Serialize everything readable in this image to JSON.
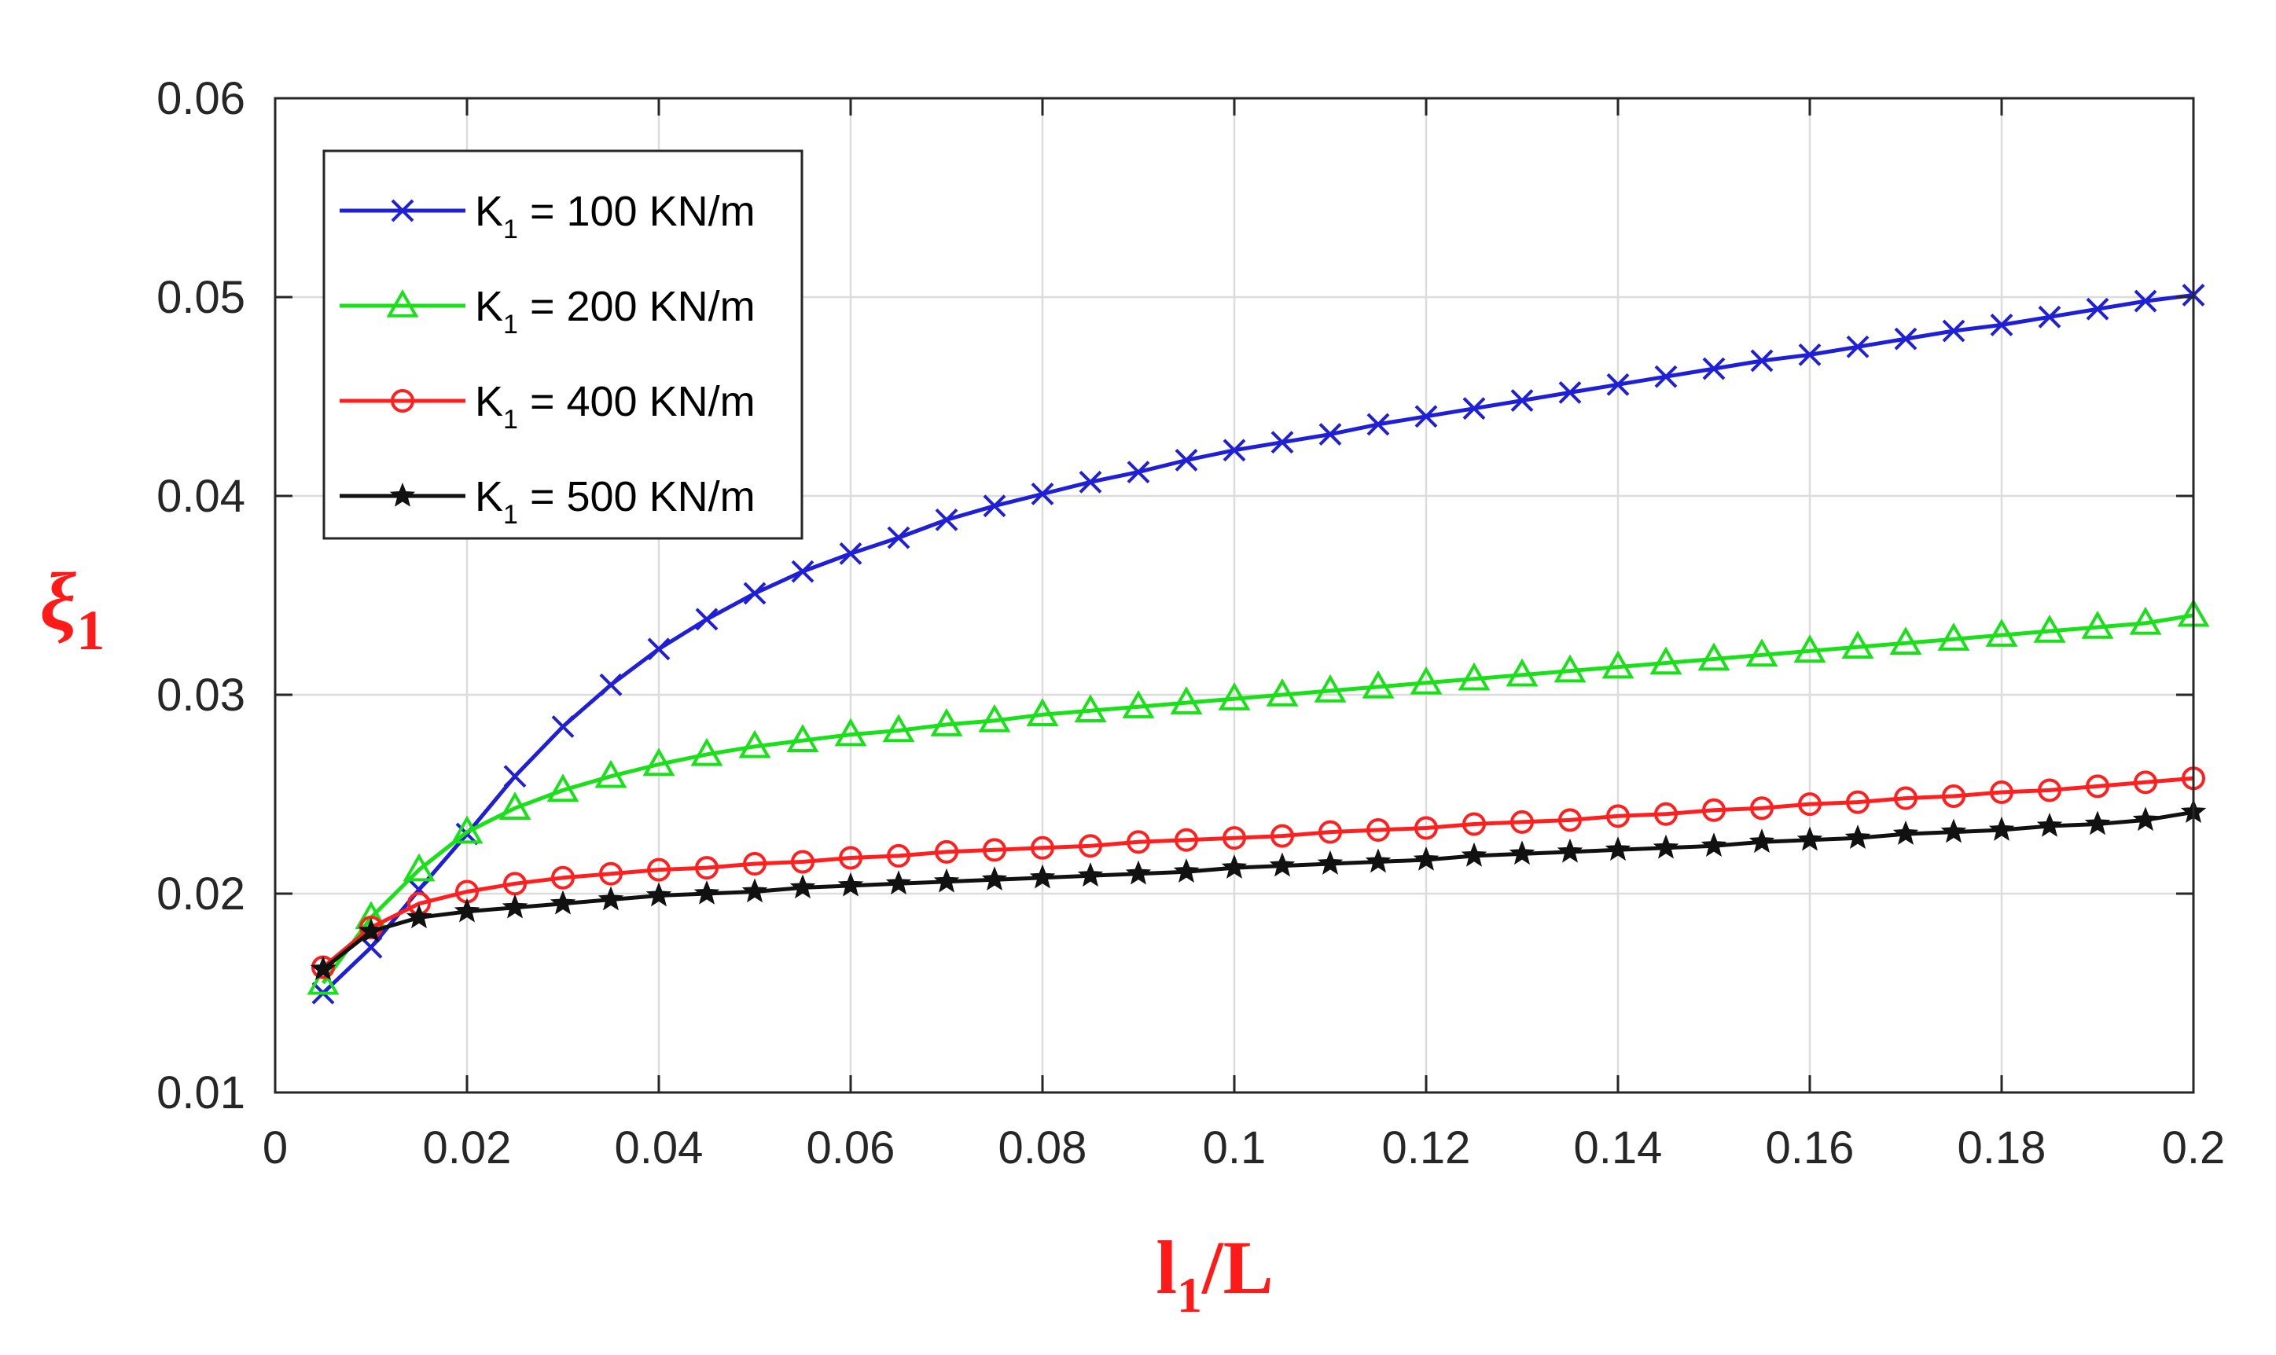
{
  "chart_data": {
    "type": "line",
    "title": "",
    "xlabel": {
      "main": "l",
      "sub": "1",
      "suffix": "/L"
    },
    "ylabel": {
      "main": "ξ",
      "sub": "1"
    },
    "xlim": [
      0,
      0.2
    ],
    "ylim": [
      0.01,
      0.06
    ],
    "grid": true,
    "legend_position": "top-left",
    "x_tick_labels": [
      "0",
      "0.02",
      "0.04",
      "0.06",
      "0.08",
      "0.1",
      "0.12",
      "0.14",
      "0.16",
      "0.18",
      "0.2"
    ],
    "y_tick_labels": [
      "0.01",
      "0.02",
      "0.03",
      "0.04",
      "0.05",
      "0.06"
    ],
    "x": [
      0.005,
      0.01,
      0.015,
      0.02,
      0.025,
      0.03,
      0.035,
      0.04,
      0.045,
      0.05,
      0.055,
      0.06,
      0.065,
      0.07,
      0.075,
      0.08,
      0.085,
      0.09,
      0.095,
      0.1,
      0.105,
      0.11,
      0.115,
      0.12,
      0.125,
      0.13,
      0.135,
      0.14,
      0.145,
      0.15,
      0.155,
      0.16,
      0.165,
      0.17,
      0.175,
      0.18,
      0.185,
      0.19,
      0.195,
      0.2
    ],
    "series": [
      {
        "name": "K1 = 100 KN/m",
        "legend_main": "K",
        "legend_sub": "1",
        "legend_rest": " = 100 KN/m",
        "color": "#1f1fd6",
        "marker": "x",
        "values": [
          0.015,
          0.0173,
          0.0202,
          0.023,
          0.0259,
          0.0284,
          0.0305,
          0.0323,
          0.0338,
          0.0351,
          0.0362,
          0.0371,
          0.0379,
          0.0388,
          0.0395,
          0.0401,
          0.0407,
          0.0412,
          0.0418,
          0.0423,
          0.0427,
          0.0431,
          0.0436,
          0.044,
          0.0444,
          0.0448,
          0.0452,
          0.0456,
          0.046,
          0.0464,
          0.0468,
          0.0471,
          0.0475,
          0.0479,
          0.0483,
          0.0486,
          0.049,
          0.0494,
          0.0498,
          0.0501
        ]
      },
      {
        "name": "K1 = 200 KN/m",
        "legend_main": "K",
        "legend_sub": "1",
        "legend_rest": " = 200 KN/m",
        "color": "#19e019",
        "marker": "triangle",
        "values": [
          0.0155,
          0.0188,
          0.0212,
          0.0231,
          0.0243,
          0.0252,
          0.0259,
          0.0265,
          0.027,
          0.0274,
          0.0277,
          0.028,
          0.0282,
          0.0285,
          0.0287,
          0.029,
          0.0292,
          0.0294,
          0.0296,
          0.0298,
          0.03,
          0.0302,
          0.0304,
          0.0306,
          0.0308,
          0.031,
          0.0312,
          0.0314,
          0.0316,
          0.0318,
          0.032,
          0.0322,
          0.0324,
          0.0326,
          0.0328,
          0.033,
          0.0332,
          0.0334,
          0.0336,
          0.034
        ]
      },
      {
        "name": "K1 = 400 KN/m",
        "legend_main": "K",
        "legend_sub": "1",
        "legend_rest": " = 400 KN/m",
        "color": "#ff1f1f",
        "marker": "circle",
        "values": [
          0.0163,
          0.0183,
          0.0195,
          0.0201,
          0.0205,
          0.0208,
          0.021,
          0.0212,
          0.0213,
          0.0215,
          0.0216,
          0.0218,
          0.0219,
          0.0221,
          0.0222,
          0.0223,
          0.0224,
          0.0226,
          0.0227,
          0.0228,
          0.0229,
          0.0231,
          0.0232,
          0.0233,
          0.0235,
          0.0236,
          0.0237,
          0.0239,
          0.024,
          0.0242,
          0.0243,
          0.0245,
          0.0246,
          0.0248,
          0.0249,
          0.0251,
          0.0252,
          0.0254,
          0.0256,
          0.0258
        ]
      },
      {
        "name": "K1 = 500 KN/m",
        "legend_main": "K",
        "legend_sub": "1",
        "legend_rest": " = 500 KN/m",
        "color": "#111111",
        "marker": "star",
        "values": [
          0.0162,
          0.0181,
          0.0188,
          0.0191,
          0.0193,
          0.0195,
          0.0197,
          0.0199,
          0.02,
          0.0201,
          0.0203,
          0.0204,
          0.0205,
          0.0206,
          0.0207,
          0.0208,
          0.0209,
          0.021,
          0.0211,
          0.0213,
          0.0214,
          0.0215,
          0.0216,
          0.0217,
          0.0219,
          0.022,
          0.0221,
          0.0222,
          0.0223,
          0.0224,
          0.0226,
          0.0227,
          0.0228,
          0.023,
          0.0231,
          0.0232,
          0.0234,
          0.0235,
          0.0237,
          0.0241
        ]
      }
    ]
  }
}
